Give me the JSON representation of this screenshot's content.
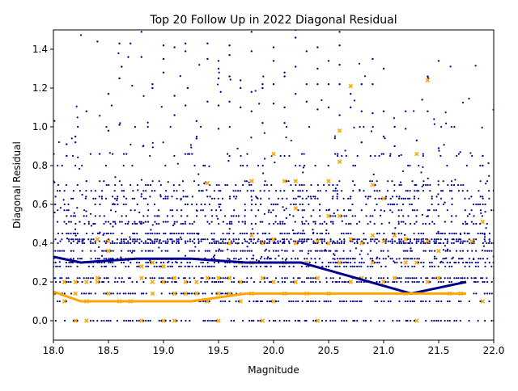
{
  "chart_data": {
    "type": "scatter",
    "title": "Top 20 Follow Up in 2022 Diagonal Residual",
    "xlabel": "Magnitude",
    "ylabel": "Diagonal Residual",
    "xlim": [
      18.0,
      22.0
    ],
    "ylim": [
      -0.1,
      1.5
    ],
    "x_ticks": [
      18.0,
      18.5,
      19.0,
      19.5,
      20.0,
      20.5,
      21.0,
      21.5,
      22.0
    ],
    "x_tick_labels": [
      "18.0",
      "18.5",
      "19.0",
      "19.5",
      "20.0",
      "20.5",
      "21.0",
      "21.5",
      "22.0"
    ],
    "y_ticks": [
      0.0,
      0.2,
      0.4,
      0.6,
      0.8,
      1.0,
      1.2,
      1.4
    ],
    "y_tick_labels": [
      "0.0",
      "0.2",
      "0.4",
      "0.6",
      "0.8",
      "1.0",
      "1.2",
      "1.4"
    ],
    "grid": false,
    "legend": "none",
    "colors": {
      "all_points": "#00008b",
      "followup_points": "#ffa500",
      "all_trend": "#00008b",
      "followup_trend": "#ffa500"
    },
    "band_levels": [
      0.0,
      0.1,
      0.14,
      0.2,
      0.22,
      0.28,
      0.3,
      0.32,
      0.36,
      0.4,
      0.41,
      0.42,
      0.45,
      0.5,
      0.51,
      0.54,
      0.57,
      0.6,
      0.63,
      0.64,
      0.67,
      0.7,
      0.72,
      0.8,
      0.85,
      0.86,
      1.0
    ],
    "series": [
      {
        "marker": "dot",
        "color": "#00008b",
        "points": [
          [
            18.0,
            0.72
          ],
          [
            18.12,
            0.91
          ],
          [
            18.12,
            0.85
          ],
          [
            18.2,
            0.95
          ],
          [
            18.2,
            0.92
          ],
          [
            18.3,
            1.08
          ],
          [
            18.3,
            0.72
          ],
          [
            18.4,
            1.44
          ],
          [
            18.42,
            0.86
          ],
          [
            18.5,
            1.17
          ],
          [
            18.5,
            0.98
          ],
          [
            18.6,
            1.43
          ],
          [
            18.6,
            1.25
          ],
          [
            18.6,
            1.01
          ],
          [
            18.62,
            1.31
          ],
          [
            18.68,
            1.36
          ],
          [
            18.7,
            1.43
          ],
          [
            18.8,
            1.49
          ],
          [
            18.8,
            1.36
          ],
          [
            18.9,
            1.22
          ],
          [
            18.9,
            1.2
          ],
          [
            19.0,
            1.42
          ],
          [
            19.0,
            1.35
          ],
          [
            19.0,
            1.28
          ],
          [
            19.1,
            1.41
          ],
          [
            19.1,
            1.16
          ],
          [
            19.1,
            1.06
          ],
          [
            19.2,
            1.43
          ],
          [
            19.2,
            1.39
          ],
          [
            19.22,
            1.2
          ],
          [
            19.2,
            1.11
          ],
          [
            19.3,
            1.03
          ],
          [
            19.3,
            0.94
          ],
          [
            19.4,
            1.43
          ],
          [
            19.4,
            1.35
          ],
          [
            19.4,
            1.13
          ],
          [
            19.5,
            1.34
          ],
          [
            19.5,
            1.3
          ],
          [
            19.5,
            1.25
          ],
          [
            19.52,
            1.18
          ],
          [
            19.5,
            1.11
          ],
          [
            19.5,
            0.99
          ],
          [
            19.6,
            1.42
          ],
          [
            19.6,
            1.37
          ],
          [
            19.6,
            1.26
          ],
          [
            19.6,
            1.13
          ],
          [
            19.7,
            1.24
          ],
          [
            19.7,
            1.2
          ],
          [
            19.7,
            1.1
          ],
          [
            19.8,
            1.49
          ],
          [
            19.8,
            1.39
          ],
          [
            19.8,
            1.18
          ],
          [
            19.8,
            1.08
          ],
          [
            19.9,
            1.22
          ],
          [
            19.9,
            1.02
          ],
          [
            19.9,
            1.2
          ],
          [
            20.0,
            1.41
          ],
          [
            20.0,
            1.34
          ],
          [
            20.0,
            1.22
          ],
          [
            20.0,
            1.12
          ],
          [
            20.1,
            1.28
          ],
          [
            20.1,
            1.26
          ],
          [
            20.1,
            1.1
          ],
          [
            20.1,
            1.02
          ],
          [
            20.2,
            1.5
          ],
          [
            20.2,
            1.46
          ],
          [
            20.2,
            1.31
          ],
          [
            20.2,
            1.17
          ],
          [
            20.3,
            1.39
          ],
          [
            20.3,
            1.22
          ],
          [
            20.3,
            1.13
          ],
          [
            20.4,
            1.41
          ],
          [
            20.4,
            1.3
          ],
          [
            20.4,
            1.22
          ],
          [
            20.4,
            1.09
          ],
          [
            20.5,
            1.34
          ],
          [
            20.5,
            1.22
          ],
          [
            20.5,
            1.1
          ],
          [
            20.6,
            1.49
          ],
          [
            20.6,
            1.42
          ],
          [
            20.6,
            1.32
          ],
          [
            20.6,
            1.22
          ],
          [
            20.6,
            1.06
          ],
          [
            20.7,
            1.17
          ],
          [
            20.7,
            1.1
          ],
          [
            20.8,
            1.22
          ],
          [
            20.8,
            1.08
          ],
          [
            20.8,
            0.92
          ],
          [
            20.9,
            1.35
          ],
          [
            20.9,
            1.22
          ],
          [
            20.9,
            1.07
          ],
          [
            21.0,
            1.3
          ],
          [
            21.0,
            1.08
          ],
          [
            21.0,
            0.95
          ],
          [
            21.1,
            1.0
          ],
          [
            21.1,
            0.9
          ],
          [
            21.2,
            1.08
          ],
          [
            21.2,
            0.99
          ],
          [
            21.3,
            0.93
          ],
          [
            21.35,
            1.14
          ],
          [
            21.4,
            1.26
          ],
          [
            21.4,
            1.08
          ],
          [
            21.5,
            1.34
          ],
          [
            21.5,
            0.89
          ],
          [
            21.9,
            0.85
          ],
          [
            21.9,
            0.8
          ],
          [
            22.0,
            0.67
          ]
        ]
      },
      {
        "marker": "x",
        "color": "#ffa500",
        "points": [
          [
            18.0,
            0.14
          ],
          [
            18.1,
            0.2
          ],
          [
            18.1,
            0.1
          ],
          [
            18.2,
            0.2
          ],
          [
            18.2,
            0.14
          ],
          [
            18.2,
            0.0
          ],
          [
            18.3,
            0.2
          ],
          [
            18.3,
            0.1
          ],
          [
            18.3,
            0.0
          ],
          [
            18.4,
            0.42
          ],
          [
            18.4,
            0.22
          ],
          [
            18.4,
            0.2
          ],
          [
            18.5,
            0.41
          ],
          [
            18.5,
            0.36
          ],
          [
            18.5,
            0.14
          ],
          [
            18.6,
            0.1
          ],
          [
            18.7,
            0.1
          ],
          [
            18.8,
            0.28
          ],
          [
            18.8,
            0.22
          ],
          [
            18.8,
            0.0
          ],
          [
            18.9,
            0.3
          ],
          [
            18.9,
            0.2
          ],
          [
            18.9,
            0.14
          ],
          [
            19.0,
            0.28
          ],
          [
            19.0,
            0.2
          ],
          [
            19.0,
            0.0
          ],
          [
            19.1,
            0.22
          ],
          [
            19.1,
            0.14
          ],
          [
            19.1,
            0.0
          ],
          [
            19.2,
            0.2
          ],
          [
            19.2,
            0.14
          ],
          [
            19.3,
            0.2
          ],
          [
            19.3,
            0.14
          ],
          [
            19.4,
            0.71
          ],
          [
            19.4,
            0.22
          ],
          [
            19.4,
            0.1
          ],
          [
            19.5,
            0.22
          ],
          [
            19.5,
            0.14
          ],
          [
            19.5,
            0.0
          ],
          [
            19.6,
            0.4
          ],
          [
            19.6,
            0.22
          ],
          [
            19.6,
            0.14
          ],
          [
            19.7,
            0.3
          ],
          [
            19.7,
            0.2
          ],
          [
            19.7,
            0.1
          ],
          [
            19.8,
            0.72
          ],
          [
            19.8,
            0.44
          ],
          [
            19.8,
            0.3
          ],
          [
            19.8,
            0.14
          ],
          [
            19.9,
            0.4
          ],
          [
            19.9,
            0.22
          ],
          [
            19.9,
            0.0
          ],
          [
            20.0,
            0.86
          ],
          [
            20.0,
            0.42
          ],
          [
            20.0,
            0.2
          ],
          [
            20.0,
            0.1
          ],
          [
            20.1,
            0.72
          ],
          [
            20.1,
            0.3
          ],
          [
            20.1,
            0.14
          ],
          [
            20.2,
            0.72
          ],
          [
            20.2,
            0.58
          ],
          [
            20.2,
            0.4
          ],
          [
            20.2,
            0.2
          ],
          [
            20.3,
            0.3
          ],
          [
            20.3,
            0.14
          ],
          [
            20.4,
            0.41
          ],
          [
            20.4,
            0.22
          ],
          [
            20.4,
            0.0
          ],
          [
            20.5,
            0.72
          ],
          [
            20.5,
            0.54
          ],
          [
            20.5,
            0.4
          ],
          [
            20.5,
            0.14
          ],
          [
            20.6,
            0.98
          ],
          [
            20.6,
            0.82
          ],
          [
            20.6,
            0.54
          ],
          [
            20.6,
            0.3
          ],
          [
            20.7,
            1.21
          ],
          [
            20.7,
            0.42
          ],
          [
            20.7,
            0.2
          ],
          [
            20.8,
            0.4
          ],
          [
            20.8,
            0.22
          ],
          [
            20.9,
            0.7
          ],
          [
            20.9,
            0.44
          ],
          [
            20.9,
            0.3
          ],
          [
            21.0,
            0.63
          ],
          [
            21.0,
            0.41
          ],
          [
            21.0,
            0.2
          ],
          [
            21.1,
            0.44
          ],
          [
            21.1,
            0.22
          ],
          [
            21.2,
            0.42
          ],
          [
            21.2,
            0.3
          ],
          [
            21.2,
            0.14
          ],
          [
            21.3,
            0.86
          ],
          [
            21.3,
            0.3
          ],
          [
            21.3,
            0.0
          ],
          [
            21.4,
            1.24
          ],
          [
            21.4,
            0.41
          ],
          [
            21.4,
            0.2
          ],
          [
            21.5,
            0.36
          ],
          [
            21.5,
            0.22
          ],
          [
            21.6,
            0.14
          ],
          [
            21.7,
            0.14
          ],
          [
            21.8,
            0.41
          ],
          [
            21.9,
            0.51
          ],
          [
            21.9,
            0.1
          ]
        ]
      },
      {
        "marker": "line",
        "color": "#00008b",
        "points": [
          [
            18.0,
            0.33
          ],
          [
            18.25,
            0.3
          ],
          [
            18.5,
            0.31
          ],
          [
            18.75,
            0.32
          ],
          [
            19.0,
            0.32
          ],
          [
            19.25,
            0.32
          ],
          [
            19.5,
            0.31
          ],
          [
            19.75,
            0.3
          ],
          [
            20.0,
            0.3
          ],
          [
            20.25,
            0.3
          ],
          [
            20.5,
            0.26
          ],
          [
            20.75,
            0.22
          ],
          [
            21.0,
            0.18
          ],
          [
            21.25,
            0.14
          ],
          [
            21.5,
            0.17
          ],
          [
            21.75,
            0.2
          ]
        ]
      },
      {
        "marker": "line",
        "color": "#ffa500",
        "points": [
          [
            18.0,
            0.15
          ],
          [
            18.25,
            0.1
          ],
          [
            18.5,
            0.1
          ],
          [
            18.75,
            0.1
          ],
          [
            19.0,
            0.1
          ],
          [
            19.25,
            0.1
          ],
          [
            19.5,
            0.12
          ],
          [
            19.75,
            0.14
          ],
          [
            20.0,
            0.14
          ],
          [
            20.25,
            0.14
          ],
          [
            20.5,
            0.14
          ],
          [
            20.75,
            0.14
          ],
          [
            21.0,
            0.14
          ],
          [
            21.25,
            0.14
          ],
          [
            21.5,
            0.14
          ],
          [
            21.75,
            0.14
          ]
        ]
      }
    ]
  }
}
